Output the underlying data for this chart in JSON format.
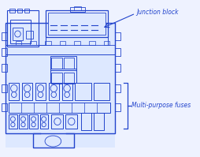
{
  "bg_color": "#eef2ff",
  "diagram_color": "#2244cc",
  "label_color": "#2244cc",
  "label1": "Junction block",
  "label2": "Multi-purpose fuses",
  "fig_width": 2.54,
  "fig_height": 1.99,
  "dpi": 100
}
